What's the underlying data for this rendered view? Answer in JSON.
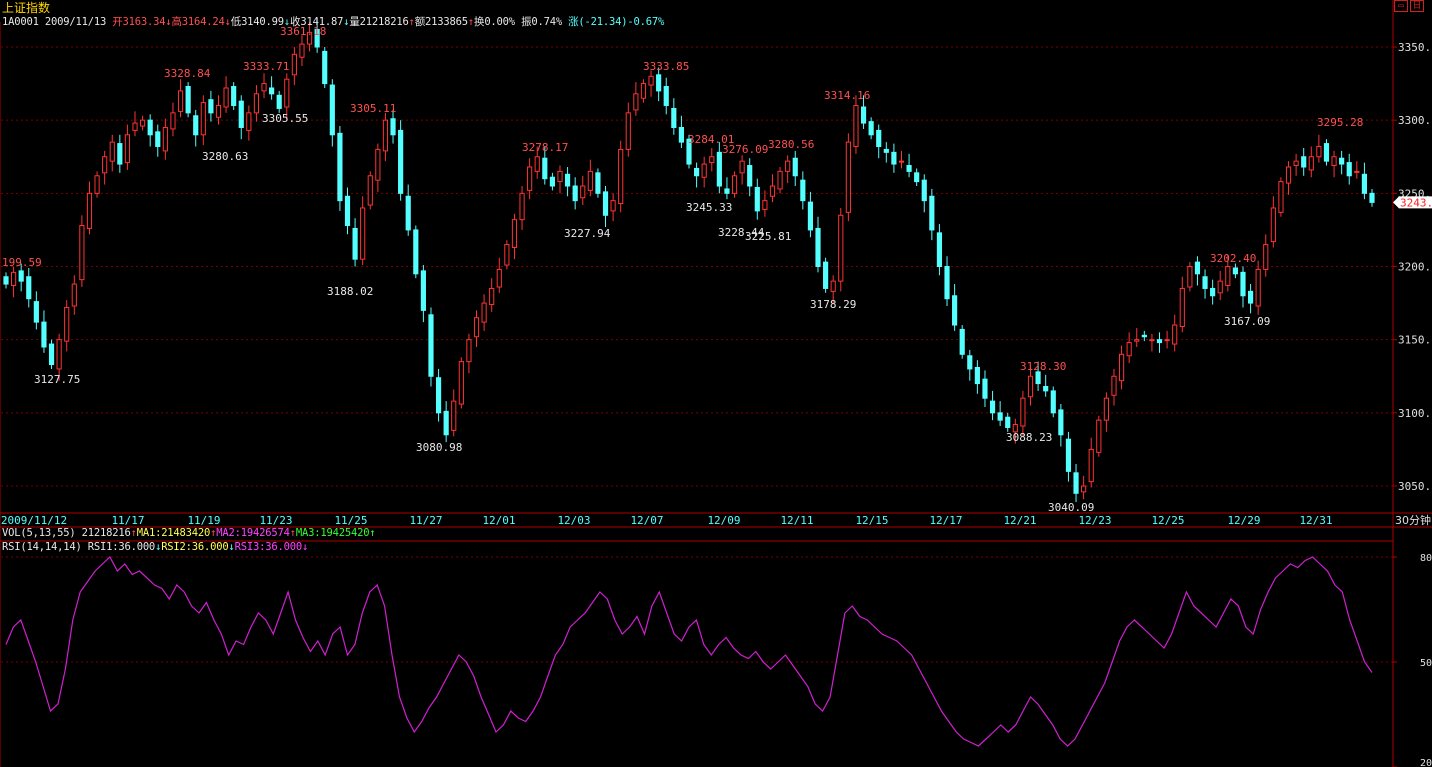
{
  "header": {
    "title": "上证指数",
    "code": "1A0001",
    "date": "2009/11/13",
    "open_label": "开3163.34",
    "high_label": "高3164.24",
    "low_label": "低3140.99",
    "close_label": "收3141.87",
    "volume_label": "量21218216",
    "amount_label": "额2133865",
    "turnover_label": "换0.00%",
    "amplitude_label": "振0.74%",
    "change_label": "涨(-21.34)-0.67%"
  },
  "window_buttons": [
    "▭",
    "日"
  ],
  "colors": {
    "up": "#ff3333",
    "down": "#54ffff",
    "grid": "#7a0000",
    "axis": "#b00000",
    "rsi": "#d020d0",
    "background": "#000000"
  },
  "vol_line": {
    "name": "VOL(5,13,55)",
    "value": "21218216",
    "ma1": "MA1:21483420",
    "ma2": "MA2:19426574",
    "ma3": "MA3:19425420"
  },
  "rsi_line": {
    "name": "RSI(14,14,14)",
    "rsi1": "RSI1:36.000",
    "rsi2": "RSI2:36.000",
    "rsi3": "RSI3:36.000"
  },
  "chart_data": [
    {
      "type": "candlestick",
      "title": "上证指数",
      "period_label": "30分钟",
      "ylim": [
        3030,
        3375
      ],
      "y_ticks": [
        "3350.",
        "3300.",
        "3250.",
        "3200.",
        "3150.",
        "3100.",
        "3050."
      ],
      "x_tick_labels": [
        "2009/11/12",
        "11/17",
        "11/19",
        "11/23",
        "11/25",
        "11/27",
        "12/01",
        "12/03",
        "12/07",
        "12/09",
        "12/11",
        "12/15",
        "12/17",
        "12/21",
        "12/23",
        "12/25",
        "12/29",
        "12/31"
      ],
      "last_price_label": "3243.8",
      "close_series": [
        3188,
        3196,
        3190,
        3178,
        3162,
        3145,
        3133,
        3150,
        3172,
        3188,
        3228,
        3250,
        3262,
        3275,
        3285,
        3270,
        3290,
        3298,
        3300,
        3290,
        3282,
        3295,
        3305,
        3320,
        3305,
        3290,
        3312,
        3305,
        3310,
        3322,
        3310,
        3295,
        3305,
        3318,
        3325,
        3318,
        3308,
        3328,
        3345,
        3352,
        3360,
        3350,
        3325,
        3290,
        3245,
        3228,
        3205,
        3240,
        3262,
        3280,
        3300,
        3290,
        3250,
        3225,
        3195,
        3170,
        3125,
        3100,
        3085,
        3108,
        3135,
        3150,
        3165,
        3175,
        3185,
        3198,
        3215,
        3232,
        3250,
        3268,
        3275,
        3260,
        3255,
        3265,
        3255,
        3245,
        3255,
        3265,
        3250,
        3235,
        3245,
        3280,
        3305,
        3318,
        3325,
        3330,
        3320,
        3310,
        3295,
        3285,
        3270,
        3262,
        3270,
        3275,
        3255,
        3250,
        3262,
        3272,
        3255,
        3238,
        3245,
        3255,
        3265,
        3272,
        3262,
        3245,
        3225,
        3200,
        3185,
        3190,
        3235,
        3285,
        3310,
        3298,
        3290,
        3282,
        3278,
        3270,
        3272,
        3265,
        3258,
        3245,
        3225,
        3200,
        3178,
        3160,
        3140,
        3130,
        3120,
        3110,
        3100,
        3095,
        3090,
        3092,
        3110,
        3125,
        3120,
        3115,
        3100,
        3085,
        3060,
        3045,
        3050,
        3075,
        3095,
        3110,
        3125,
        3140,
        3148,
        3150,
        3152,
        3150,
        3148,
        3150,
        3160,
        3185,
        3200,
        3195,
        3185,
        3180,
        3190,
        3200,
        3195,
        3180,
        3175,
        3198,
        3215,
        3240,
        3258,
        3268,
        3272,
        3268,
        3275,
        3282,
        3272,
        3275,
        3270,
        3262,
        3265,
        3250,
        3243.8
      ],
      "annotations": [
        {
          "label": "199.59",
          "kind": "high"
        },
        {
          "label": "3127.75",
          "kind": "low"
        },
        {
          "label": "3328.84",
          "kind": "high"
        },
        {
          "label": "3280.63",
          "kind": "low"
        },
        {
          "label": "3333.71",
          "kind": "high"
        },
        {
          "label": "3305.55",
          "kind": "low"
        },
        {
          "label": "3361.18",
          "kind": "high"
        },
        {
          "label": "3305.11",
          "kind": "high"
        },
        {
          "label": "3188.02",
          "kind": "low"
        },
        {
          "label": "3080.98",
          "kind": "low"
        },
        {
          "label": "3278.17",
          "kind": "high"
        },
        {
          "label": "3227.94",
          "kind": "low"
        },
        {
          "label": "3333.85",
          "kind": "high"
        },
        {
          "label": "3284.01",
          "kind": "high"
        },
        {
          "label": "3276.09",
          "kind": "high"
        },
        {
          "label": "3245.33",
          "kind": "low"
        },
        {
          "label": "3228.44",
          "kind": "low"
        },
        {
          "label": "3225.81",
          "kind": "low"
        },
        {
          "label": "3280.56",
          "kind": "high"
        },
        {
          "label": "3314.16",
          "kind": "high"
        },
        {
          "label": "3178.29",
          "kind": "low"
        },
        {
          "label": "3128.30",
          "kind": "high"
        },
        {
          "label": "3088.23",
          "kind": "low"
        },
        {
          "label": "3040.09",
          "kind": "low"
        },
        {
          "label": "3202.40",
          "kind": "high"
        },
        {
          "label": "3167.09",
          "kind": "low"
        },
        {
          "label": "3295.28",
          "kind": "high"
        }
      ]
    },
    {
      "type": "line",
      "title": "RSI(14,14,14)",
      "ylim": [
        20,
        80
      ],
      "y_ticks": [
        "80",
        "50",
        "20"
      ],
      "series": [
        {
          "name": "RSI1",
          "values": [
            55,
            60,
            62,
            56,
            50,
            43,
            36,
            38,
            48,
            62,
            70,
            73,
            76,
            78,
            80,
            76,
            78,
            75,
            76,
            74,
            72,
            71,
            68,
            72,
            70,
            66,
            64,
            67,
            62,
            58,
            52,
            56,
            55,
            60,
            64,
            62,
            58,
            64,
            70,
            62,
            57,
            53,
            56,
            52,
            58,
            60,
            52,
            55,
            64,
            70,
            72,
            66,
            52,
            40,
            34,
            30,
            33,
            37,
            40,
            44,
            48,
            52,
            50,
            46,
            40,
            35,
            30,
            32,
            36,
            34,
            33,
            36,
            40,
            46,
            52,
            55,
            60,
            62,
            64,
            67,
            70,
            68,
            62,
            58,
            60,
            63,
            58,
            66,
            70,
            64,
            58,
            56,
            60,
            62,
            55,
            52,
            55,
            57,
            54,
            52,
            51,
            53,
            50,
            48,
            50,
            52,
            49,
            46,
            43,
            38,
            36,
            40,
            52,
            64,
            66,
            63,
            62,
            60,
            58,
            57,
            56,
            54,
            52,
            48,
            44,
            40,
            36,
            33,
            30,
            28,
            27,
            26,
            28,
            30,
            32,
            30,
            32,
            36,
            40,
            38,
            35,
            32,
            28,
            26,
            28,
            32,
            36,
            40,
            44,
            50,
            56,
            60,
            62,
            60,
            58,
            56,
            54,
            58,
            64,
            70,
            66,
            64,
            62,
            60,
            64,
            68,
            66,
            60,
            58,
            65,
            70,
            74,
            76,
            78,
            77,
            79,
            80,
            78,
            76,
            72,
            70,
            62,
            56,
            50,
            47
          ]
        }
      ]
    }
  ]
}
